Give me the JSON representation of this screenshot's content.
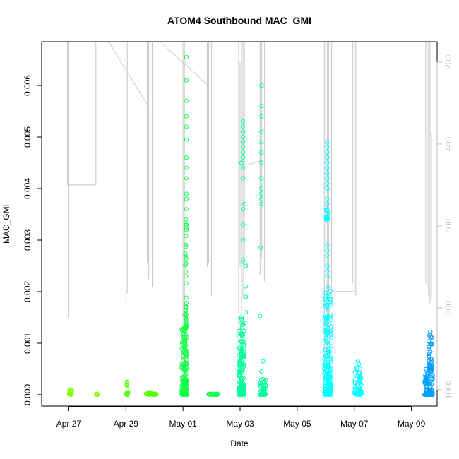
{
  "chart_data": {
    "type": "scatter",
    "title": "ATOM4 Southbound MAC_GMI",
    "xlabel": "Date",
    "ylabel": "MAC_GMI",
    "x_ticks": [
      "Apr 27",
      "Apr 29",
      "May 01",
      "May 03",
      "May 05",
      "May 07",
      "May 09"
    ],
    "x_tick_days": [
      1,
      3,
      5,
      7,
      9,
      11,
      13
    ],
    "xlim_days": [
      0.05,
      13.9
    ],
    "y_ticks": [
      0.0,
      0.001,
      0.002,
      0.003,
      0.004,
      0.005,
      0.006
    ],
    "y_tick_labels": [
      "0.000",
      "0.001",
      "0.002",
      "0.003",
      "0.004",
      "0.005",
      "0.006"
    ],
    "ylim": [
      -0.00022,
      0.00685
    ],
    "y2_ticks": [
      200,
      400,
      600,
      800,
      1000
    ],
    "y2_tick_labels": [
      "200",
      "400",
      "600",
      "800",
      "1000"
    ],
    "y2lim": [
      150,
      1040
    ],
    "grid": false,
    "series": [
      {
        "color": "#7fff00",
        "clusters": [
          {
            "x": [
              1.0,
              1.12
            ],
            "ymin": 0.0,
            "ymax": 0.0001,
            "n": 14
          },
          {
            "x": [
              1.95,
              2.02
            ],
            "ymin": 0.0,
            "ymax": 2e-05,
            "n": 4
          }
        ]
      },
      {
        "color": "#55ff00",
        "clusters": [
          {
            "x": [
              3.0,
              3.08
            ],
            "ymin": 0.0,
            "ymax": 0.00025,
            "n": 18
          },
          {
            "x": [
              3.7,
              3.95
            ],
            "ymin": 0.0,
            "ymax": 5e-05,
            "n": 14
          },
          {
            "x": [
              3.95,
              4.15
            ],
            "ymin": 0.0,
            "ymax": 2e-05,
            "n": 8
          }
        ]
      },
      {
        "color": "#19ff4b",
        "clusters": [
          {
            "x": [
              4.95,
              5.15
            ],
            "ymin": 0.0,
            "ymax": 0.0013,
            "n": 160
          },
          {
            "x": [
              5.08,
              5.12
            ],
            "ymin": 0.0013,
            "ymax": 0.0034,
            "n": 40
          },
          {
            "x": [
              5.85,
              6.25
            ],
            "ymin": 0.0,
            "ymax": 2e-05,
            "n": 20
          }
        ],
        "points": [
          [
            5.12,
            0.00655
          ],
          [
            5.12,
            0.0061
          ],
          [
            5.12,
            0.0057
          ],
          [
            5.12,
            0.0054
          ],
          [
            5.12,
            0.0052
          ],
          [
            5.12,
            0.00495
          ],
          [
            5.12,
            0.0046
          ],
          [
            5.12,
            0.0044
          ],
          [
            5.12,
            0.0042
          ],
          [
            5.12,
            0.0039
          ],
          [
            5.12,
            0.0038
          ],
          [
            5.12,
            0.0036
          ],
          [
            5.12,
            0.0033
          ],
          [
            5.12,
            0.0032
          ]
        ]
      },
      {
        "color": "#00ff99",
        "clusters": [
          {
            "x": [
              6.95,
              7.15
            ],
            "ymin": 0.0,
            "ymax": 0.0015,
            "n": 150
          },
          {
            "x": [
              7.7,
              7.9
            ],
            "ymin": 0.0,
            "ymax": 0.0003,
            "n": 40
          }
        ],
        "points": [
          [
            7.1,
            0.0053
          ],
          [
            7.1,
            0.0052
          ],
          [
            7.1,
            0.0051
          ],
          [
            7.1,
            0.005
          ],
          [
            7.1,
            0.0049
          ],
          [
            7.1,
            0.0048
          ],
          [
            7.1,
            0.0047
          ],
          [
            7.1,
            0.0046
          ],
          [
            7.05,
            0.0045
          ],
          [
            7.1,
            0.0044
          ],
          [
            7.1,
            0.0042
          ],
          [
            7.15,
            0.0037
          ],
          [
            7.1,
            0.0036
          ],
          [
            7.1,
            0.0033
          ],
          [
            7.1,
            0.003
          ],
          [
            7.1,
            0.0026
          ],
          [
            7.2,
            0.0019
          ],
          [
            7.2,
            0.0021
          ],
          [
            7.2,
            0.0016
          ],
          [
            7.2,
            0.0025
          ],
          [
            7.75,
            0.006
          ],
          [
            7.75,
            0.0056
          ],
          [
            7.75,
            0.0054
          ],
          [
            7.75,
            0.0051
          ],
          [
            7.75,
            0.0049
          ],
          [
            7.75,
            0.0047
          ],
          [
            7.75,
            0.0045
          ],
          [
            7.75,
            0.0042
          ],
          [
            7.75,
            0.004
          ],
          [
            7.75,
            0.0039
          ],
          [
            7.75,
            0.0038
          ],
          [
            7.75,
            0.0037
          ],
          [
            7.72,
            0.00285
          ],
          [
            7.7,
            0.00153
          ],
          [
            7.8,
            0.00065
          ],
          [
            7.75,
            0.00045
          ]
        ]
      },
      {
        "color": "#00ffff",
        "clusters": [
          {
            "x": [
              9.95,
              10.2
            ],
            "ymin": 0.0,
            "ymax": 0.0021,
            "n": 180
          },
          {
            "x": [
              10.0,
              10.08
            ],
            "ymin": 0.0034,
            "ymax": 0.0036,
            "n": 14
          },
          {
            "x": [
              11.0,
              11.25
            ],
            "ymin": 0.0,
            "ymax": 0.00065,
            "n": 60
          }
        ],
        "points": [
          [
            10.05,
            0.0049
          ],
          [
            10.05,
            0.0048
          ],
          [
            10.05,
            0.0047
          ],
          [
            10.05,
            0.0046
          ],
          [
            10.05,
            0.0045
          ],
          [
            10.05,
            0.0044
          ],
          [
            10.05,
            0.0043
          ],
          [
            10.05,
            0.0042
          ],
          [
            10.05,
            0.0041
          ],
          [
            10.05,
            0.004
          ],
          [
            10.05,
            0.0038
          ],
          [
            10.05,
            0.0037
          ],
          [
            10.05,
            0.0029
          ],
          [
            10.05,
            0.0028
          ],
          [
            10.05,
            0.0027
          ],
          [
            10.05,
            0.0025
          ],
          [
            10.05,
            0.0024
          ],
          [
            10.05,
            0.0023
          ]
        ]
      },
      {
        "color": "#009fff",
        "clusters": [
          {
            "x": [
              13.45,
              13.75
            ],
            "ymin": 0.0,
            "ymax": 0.0005,
            "n": 90
          },
          {
            "x": [
              13.6,
              13.72
            ],
            "ymin": 0.0005,
            "ymax": 0.00122,
            "n": 40
          }
        ]
      }
    ],
    "background_line": {
      "color": "#c8c8c8",
      "axis": "y2",
      "segments": [
        [
          [
            0.95,
            150
          ],
          [
            0.95,
            500
          ],
          [
            1.95,
            500
          ],
          [
            1.95,
            150
          ]
        ],
        [
          [
            1.0,
            150
          ],
          [
            1.0,
            825
          ]
        ],
        [
          [
            2.4,
            150
          ],
          [
            3.8,
            310
          ]
        ],
        [
          [
            3.0,
            150
          ],
          [
            3.0,
            800
          ]
        ],
        [
          [
            3.05,
            150
          ],
          [
            3.05,
            765
          ]
        ],
        [
          [
            3.75,
            150
          ],
          [
            3.75,
            690
          ]
        ],
        [
          [
            3.8,
            150
          ],
          [
            3.8,
            730
          ]
        ],
        [
          [
            3.85,
            150
          ],
          [
            3.85,
            720
          ]
        ],
        [
          [
            3.92,
            150
          ],
          [
            3.92,
            750
          ]
        ],
        [
          [
            4.2,
            150
          ],
          [
            5.85,
            255
          ]
        ],
        [
          [
            5.0,
            150
          ],
          [
            5.0,
            970
          ]
        ],
        [
          [
            5.05,
            150
          ],
          [
            5.05,
            970
          ]
        ],
        [
          [
            5.85,
            150
          ],
          [
            5.85,
            700
          ]
        ],
        [
          [
            5.9,
            150
          ],
          [
            5.9,
            690
          ]
        ],
        [
          [
            5.95,
            150
          ],
          [
            5.95,
            720
          ]
        ],
        [
          [
            6.0,
            150
          ],
          [
            6.0,
            770
          ]
        ],
        [
          [
            6.05,
            150
          ],
          [
            6.05,
            700
          ]
        ],
        [
          [
            6.95,
            150
          ],
          [
            6.95,
            850
          ]
        ],
        [
          [
            7.0,
            200
          ],
          [
            7.0,
            700
          ]
        ],
        [
          [
            7.05,
            150
          ],
          [
            7.05,
            980
          ]
        ],
        [
          [
            7.1,
            150
          ],
          [
            7.1,
            780
          ]
        ],
        [
          [
            7.15,
            150
          ],
          [
            7.15,
            690
          ]
        ],
        [
          [
            7.3,
            450
          ],
          [
            7.75,
            440
          ]
        ],
        [
          [
            7.7,
            150
          ],
          [
            7.7,
            720
          ]
        ],
        [
          [
            7.75,
            150
          ],
          [
            7.75,
            680
          ]
        ],
        [
          [
            7.8,
            150
          ],
          [
            7.8,
            750
          ]
        ],
        [
          [
            7.85,
            150
          ],
          [
            7.85,
            735
          ]
        ],
        [
          [
            9.95,
            150
          ],
          [
            9.95,
            980
          ]
        ],
        [
          [
            10.0,
            150
          ],
          [
            10.0,
            700
          ]
        ],
        [
          [
            10.05,
            150
          ],
          [
            10.05,
            920
          ]
        ],
        [
          [
            10.1,
            150
          ],
          [
            10.1,
            860
          ]
        ],
        [
          [
            10.15,
            150
          ],
          [
            10.15,
            760
          ]
        ],
        [
          [
            10.2,
            150
          ],
          [
            10.2,
            780
          ]
        ],
        [
          [
            10.25,
            150
          ],
          [
            10.25,
            760
          ],
          [
            11.0,
            760
          ],
          [
            11.0,
            150
          ]
        ],
        [
          [
            10.95,
            150
          ],
          [
            10.95,
            740
          ]
        ],
        [
          [
            11.05,
            150
          ],
          [
            11.05,
            770
          ]
        ],
        [
          [
            13.5,
            150
          ],
          [
            13.5,
            740
          ]
        ],
        [
          [
            13.55,
            150
          ],
          [
            13.55,
            750
          ]
        ],
        [
          [
            13.6,
            150
          ],
          [
            13.6,
            770
          ]
        ],
        [
          [
            13.65,
            150
          ],
          [
            13.65,
            790
          ]
        ],
        [
          [
            13.7,
            375
          ],
          [
            13.7,
            780
          ]
        ]
      ]
    }
  }
}
